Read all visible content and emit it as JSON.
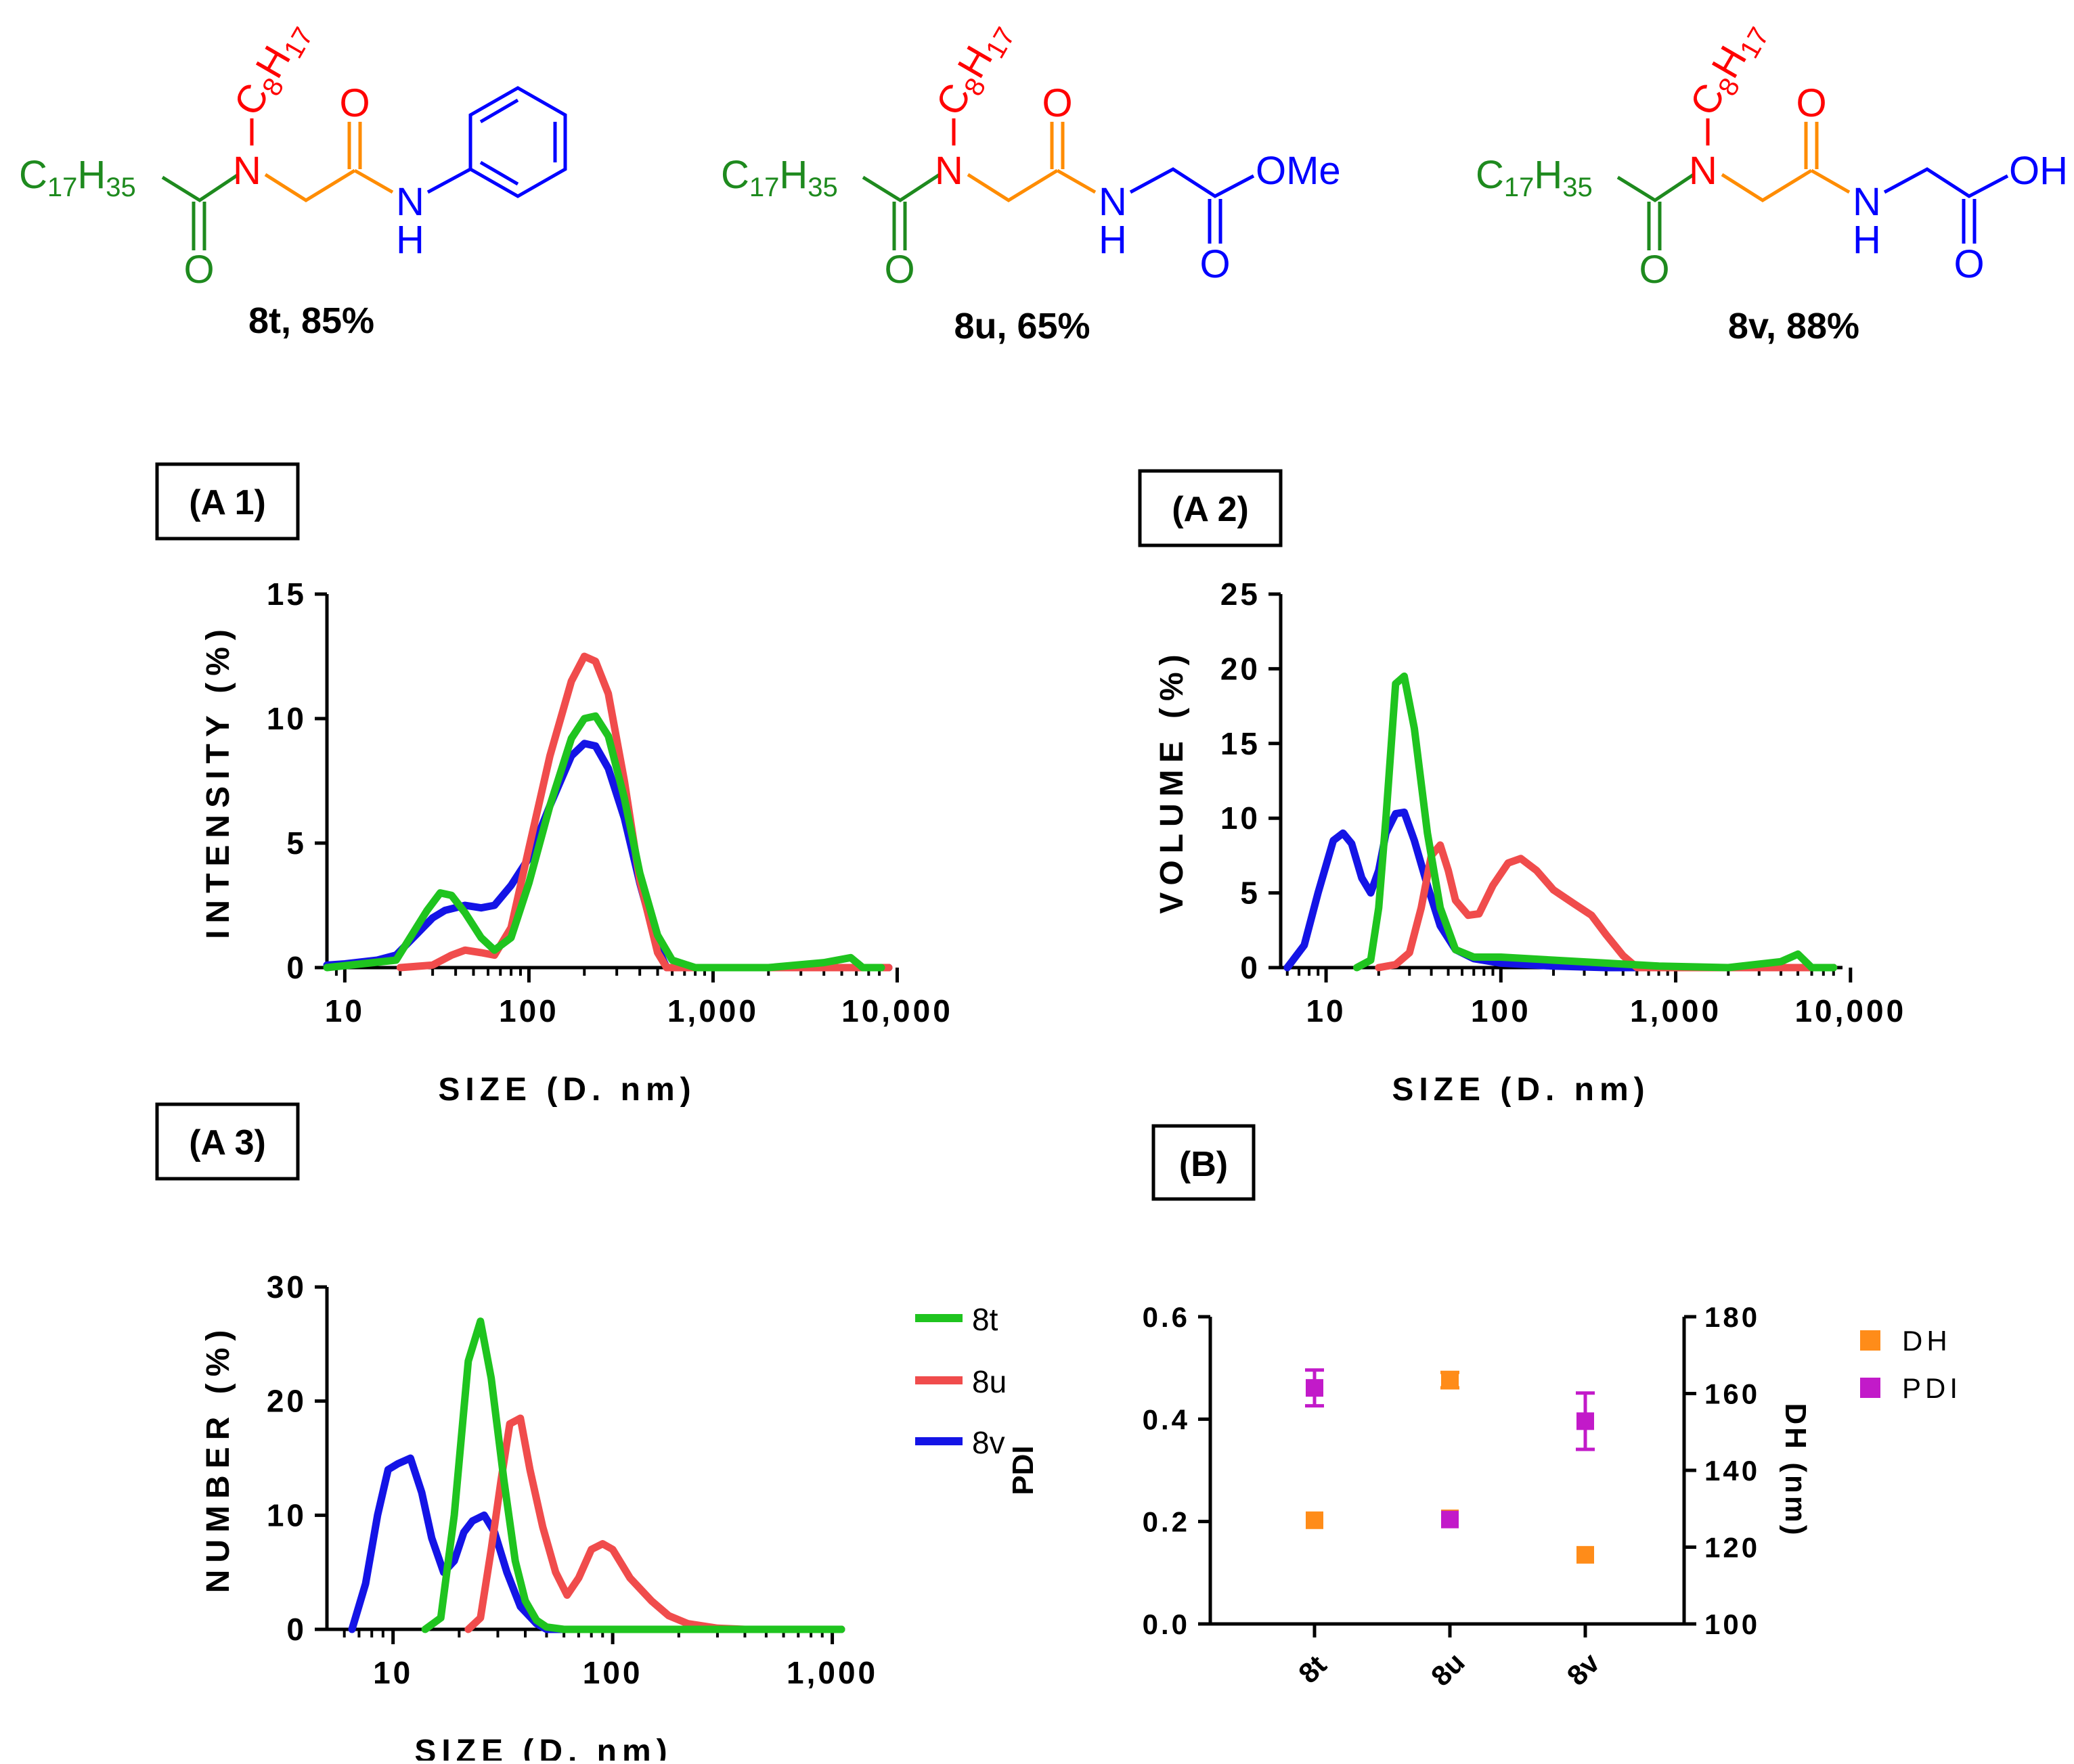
{
  "compounds": [
    {
      "id": "8t",
      "label": "8t, 85%",
      "acyl_prefix": "C",
      "acyl_sub1": "17",
      "acyl_mid": "H",
      "acyl_sub2": "35",
      "acyl_o": "O",
      "n_atom": "N",
      "alkyl_prefix": "C",
      "alkyl_sub1": "8",
      "alkyl_mid": "H",
      "alkyl_sub2": "17",
      "amide_o": "O",
      "nh_n": "N",
      "nh_h": "H",
      "end_o": "",
      "end_group": ""
    },
    {
      "id": "8u",
      "label": "8u, 65%",
      "acyl_prefix": "C",
      "acyl_sub1": "17",
      "acyl_mid": "H",
      "acyl_sub2": "35",
      "acyl_o": "O",
      "n_atom": "N",
      "alkyl_prefix": "C",
      "alkyl_sub1": "8",
      "alkyl_mid": "H",
      "alkyl_sub2": "17",
      "amide_o": "O",
      "nh_n": "N",
      "nh_h": "H",
      "end_o": "O",
      "end_group": "OMe"
    },
    {
      "id": "8v",
      "label": "8v, 88%",
      "acyl_prefix": "C",
      "acyl_sub1": "17",
      "acyl_mid": "H",
      "acyl_sub2": "35",
      "acyl_o": "O",
      "n_atom": "N",
      "alkyl_prefix": "C",
      "alkyl_sub1": "8",
      "alkyl_mid": "H",
      "alkyl_sub2": "17",
      "amide_o": "O",
      "nh_n": "N",
      "nh_h": "H",
      "end_o": "O",
      "end_group": "OH"
    }
  ],
  "colors": {
    "acyl": "#1e8a1e",
    "alkyl": "#ff0000",
    "linker": "#ff8c00",
    "amine": "#0000ff",
    "line_8t": "#1fc41f",
    "line_8u": "#f04c4c",
    "line_8v": "#1414e6",
    "dh": "#ff8c19",
    "pdi": "#c21ac9"
  },
  "legend": [
    {
      "name": "8t",
      "color": "#1fc41f"
    },
    {
      "name": "8u",
      "color": "#f04c4c"
    },
    {
      "name": "8v",
      "color": "#1414e6"
    }
  ],
  "legend_b": [
    {
      "name": "DH",
      "color": "#ff8c19"
    },
    {
      "name": "PDI",
      "color": "#c21ac9"
    }
  ],
  "chart_data": [
    {
      "id": "A1",
      "panel_label": "(A 1)",
      "type": "line",
      "x_scale": "log",
      "xlabel": "SIZE (D. nm)",
      "ylabel": "INTENSITY (%)",
      "xlim": [
        8,
        9000
      ],
      "ylim": [
        0,
        15
      ],
      "xticks": [
        10,
        100,
        1000,
        10000
      ],
      "xtick_labels": [
        "10",
        "100",
        "1,000",
        "10,000"
      ],
      "yticks": [
        0,
        5,
        10,
        15
      ],
      "ytick_labels": [
        "0",
        "5",
        "10",
        "15"
      ],
      "series": [
        {
          "name": "8t",
          "x": [
            8,
            19,
            28,
            33,
            38,
            45,
            55,
            65,
            80,
            100,
            130,
            170,
            200,
            230,
            270,
            330,
            400,
            500,
            600,
            800,
            2000,
            4000,
            5600,
            6500,
            8200
          ],
          "y": [
            0,
            0.3,
            2.3,
            3.0,
            2.9,
            2.2,
            1.2,
            0.7,
            1.2,
            3.4,
            6.5,
            9.2,
            10.0,
            10.1,
            9.3,
            6.8,
            3.8,
            1.3,
            0.3,
            0,
            0,
            0.2,
            0.4,
            0,
            0
          ]
        },
        {
          "name": "8u",
          "x": [
            20,
            30,
            38,
            45,
            55,
            65,
            80,
            100,
            130,
            170,
            200,
            230,
            270,
            330,
            400,
            500,
            560,
            700,
            9000
          ],
          "y": [
            0,
            0.1,
            0.5,
            0.7,
            0.6,
            0.5,
            1.6,
            4.8,
            8.5,
            11.5,
            12.5,
            12.3,
            11.0,
            7.5,
            3.5,
            0.6,
            0,
            0,
            0
          ]
        },
        {
          "name": "8v",
          "x": [
            8,
            10,
            15,
            19,
            25,
            30,
            35,
            45,
            55,
            65,
            80,
            100,
            130,
            170,
            200,
            230,
            270,
            330,
            400,
            500,
            560,
            700,
            9000
          ],
          "y": [
            0.1,
            0.15,
            0.3,
            0.5,
            1.4,
            2.0,
            2.3,
            2.5,
            2.4,
            2.5,
            3.3,
            4.4,
            6.5,
            8.5,
            9.0,
            8.9,
            8.0,
            6.0,
            3.4,
            0.8,
            0,
            0,
            0
          ]
        }
      ]
    },
    {
      "id": "A2",
      "panel_label": "(A 2)",
      "type": "line",
      "x_scale": "log",
      "xlabel": "SIZE (D. nm)",
      "ylabel": "VOLUME (%)",
      "xlim": [
        5.5,
        9000
      ],
      "ylim": [
        0,
        25
      ],
      "xticks": [
        10,
        100,
        1000,
        10000
      ],
      "xtick_labels": [
        "10",
        "100",
        "1,000",
        "10,000"
      ],
      "yticks": [
        0,
        5,
        10,
        15,
        20,
        25
      ],
      "ytick_labels": [
        "0",
        "5",
        "10",
        "15",
        "20",
        "25"
      ],
      "series": [
        {
          "name": "8t",
          "x": [
            15,
            18,
            20,
            22,
            25,
            28,
            32,
            38,
            45,
            55,
            70,
            100,
            200,
            400,
            800,
            2000,
            4000,
            5000,
            6000,
            8000
          ],
          "y": [
            0,
            0.5,
            4,
            10,
            19,
            19.5,
            16,
            9,
            4,
            1.2,
            0.7,
            0.7,
            0.5,
            0.3,
            0.1,
            0,
            0.4,
            0.9,
            0,
            0
          ]
        },
        {
          "name": "8u",
          "x": [
            20,
            25,
            30,
            35,
            40,
            45,
            50,
            55,
            65,
            75,
            90,
            110,
            130,
            160,
            200,
            260,
            330,
            400,
            500,
            600,
            8000
          ],
          "y": [
            0,
            0.2,
            1,
            4,
            7.5,
            8.2,
            6.5,
            4.5,
            3.5,
            3.6,
            5.5,
            7.0,
            7.3,
            6.5,
            5.2,
            4.3,
            3.5,
            2.2,
            0.8,
            0,
            0
          ]
        },
        {
          "name": "8v",
          "x": [
            6,
            7.5,
            9,
            11,
            12.5,
            14,
            16,
            18,
            20,
            22,
            25,
            28,
            32,
            38,
            45,
            55,
            70,
            100,
            200,
            400,
            600,
            8000
          ],
          "y": [
            0,
            1.5,
            5,
            8.5,
            9.0,
            8.3,
            6,
            5,
            6.5,
            9,
            10.3,
            10.4,
            8.5,
            5.5,
            2.8,
            1.2,
            0.6,
            0.3,
            0.1,
            0,
            0,
            0
          ]
        }
      ]
    },
    {
      "id": "A3",
      "panel_label": "(A 3)",
      "type": "line",
      "x_scale": "log",
      "xlabel": "SIZE (D. nm)",
      "ylabel": "NUMBER (%)",
      "xlim": [
        5,
        1100
      ],
      "ylim": [
        0,
        30
      ],
      "xticks": [
        10,
        100,
        1000
      ],
      "xtick_labels": [
        "10",
        "100",
        "1,000"
      ],
      "yticks": [
        0,
        10,
        20,
        30
      ],
      "ytick_labels": [
        "0",
        "10",
        "20",
        "30"
      ],
      "series": [
        {
          "name": "8t",
          "x": [
            14,
            16.5,
            19,
            22,
            25,
            28,
            32,
            36,
            40,
            45,
            50,
            60,
            80,
            1100
          ],
          "y": [
            0,
            1,
            10,
            23.5,
            27,
            22,
            13,
            6,
            2.5,
            0.8,
            0.2,
            0,
            0,
            0
          ]
        },
        {
          "name": "8u",
          "x": [
            22,
            25,
            28,
            31,
            34,
            38,
            42,
            48,
            55,
            62,
            70,
            80,
            90,
            100,
            120,
            150,
            180,
            220,
            300,
            400,
            1100
          ],
          "y": [
            0,
            1,
            7,
            13,
            18,
            18.5,
            14,
            9,
            5,
            3,
            4.5,
            7,
            7.5,
            7,
            4.5,
            2.5,
            1.2,
            0.5,
            0.1,
            0,
            0
          ]
        },
        {
          "name": "8v",
          "x": [
            6.5,
            7.5,
            8.5,
            9.5,
            10.5,
            12,
            13.5,
            15,
            17,
            19,
            21,
            23,
            26,
            29,
            33,
            38,
            45,
            50,
            1100
          ],
          "y": [
            0,
            4,
            10,
            14,
            14.5,
            15,
            12,
            8,
            5,
            6,
            8.5,
            9.5,
            10,
            8.5,
            5,
            2,
            0.5,
            0,
            0
          ]
        }
      ]
    },
    {
      "id": "B",
      "panel_label": "(B)",
      "type": "scatter",
      "categories": [
        "8t",
        "8u",
        "8v"
      ],
      "ylabel_left": "PDI",
      "ylabel_right": "DH (nm)",
      "ylim_left": [
        0.0,
        0.6
      ],
      "yticks_left": [
        0.0,
        0.2,
        0.4,
        0.6
      ],
      "ytick_labels_left": [
        "0.0",
        "0.2",
        "0.4",
        "0.6"
      ],
      "ylim_right": [
        100,
        180
      ],
      "yticks_right": [
        100,
        120,
        140,
        160,
        180
      ],
      "ytick_labels_right": [
        "100",
        "120",
        "140",
        "160",
        "180"
      ],
      "series": [
        {
          "name": "DH",
          "axis": "right",
          "values": [
            127,
            127.5,
            118
          ],
          "err": [
            0,
            0,
            0
          ],
          "values_high": [
            0,
            163.5,
            0
          ],
          "err_high": [
            0,
            2,
            0
          ]
        },
        {
          "name": "PDI",
          "axis": "left",
          "values": [
            0.461,
            0.204,
            0.396
          ],
          "err": [
            0.035,
            0,
            0.055
          ]
        }
      ]
    }
  ]
}
